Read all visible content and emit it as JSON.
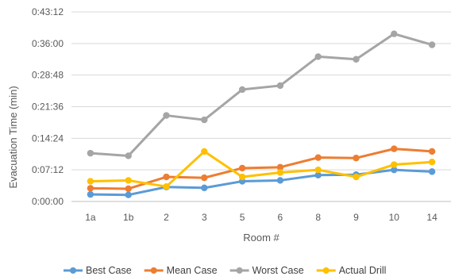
{
  "chart_data": {
    "type": "line",
    "title": "",
    "xlabel": "Room #",
    "ylabel": "Evacuation Time (min)",
    "categories": [
      "1a",
      "1b",
      "2",
      "3",
      "5",
      "6",
      "8",
      "9",
      "10",
      "14"
    ],
    "y_unit": "minutes",
    "ylim": [
      0,
      43.2
    ],
    "y_ticks": [
      {
        "value": 0,
        "label": "0:00:00"
      },
      {
        "value": 7.2,
        "label": "0:07:12"
      },
      {
        "value": 14.4,
        "label": "0:14:24"
      },
      {
        "value": 21.6,
        "label": "0:21:36"
      },
      {
        "value": 28.8,
        "label": "0:28:48"
      },
      {
        "value": 36.0,
        "label": "0:36:00"
      },
      {
        "value": 43.2,
        "label": "0:43:12"
      }
    ],
    "grid": "horizontal",
    "legend_position": "bottom",
    "series": [
      {
        "name": "Best Case",
        "color": "#5b9bd5",
        "values": [
          1.6,
          1.5,
          3.3,
          3.1,
          4.6,
          4.8,
          6.0,
          6.1,
          7.2,
          6.8
        ]
      },
      {
        "name": "Mean Case",
        "color": "#ed7d31",
        "values": [
          3.0,
          2.9,
          5.6,
          5.4,
          7.6,
          7.8,
          10.0,
          9.9,
          12.0,
          11.4
        ]
      },
      {
        "name": "Worst Case",
        "color": "#a5a5a5",
        "values": [
          11.0,
          10.4,
          19.6,
          18.6,
          25.5,
          26.4,
          33.0,
          32.4,
          38.2,
          35.7
        ]
      },
      {
        "name": "Actual Drill",
        "color": "#ffc000",
        "values": [
          4.6,
          4.8,
          3.4,
          11.4,
          5.6,
          6.6,
          7.2,
          5.6,
          8.4,
          9.0
        ]
      }
    ]
  }
}
